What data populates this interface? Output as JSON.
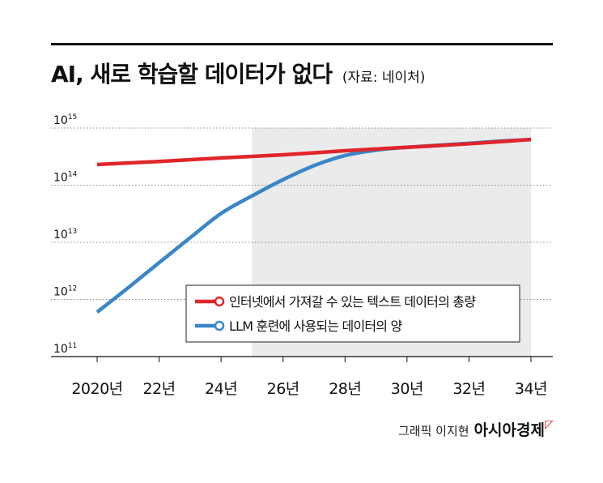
{
  "header": {
    "title": "AI, 새로 학습할 데이터가 없다",
    "source": "(자료: 네이처)"
  },
  "credit": {
    "graphic_by": "그래픽 이지현",
    "outlet": "아시아경제"
  },
  "colors": {
    "series_red": "#e0252b",
    "series_blue": "#3a86c8",
    "shade": "#ebebeb",
    "grid": "#888888"
  },
  "chart_data": {
    "type": "line",
    "x_scale": "linear",
    "y_scale": "log",
    "xlim": [
      2020,
      2034
    ],
    "ylim": [
      100000000000.0,
      1000000000000000.0
    ],
    "x_ticks": [
      2020,
      2022,
      2024,
      2026,
      2028,
      2030,
      2032,
      2034
    ],
    "x_tick_labels": [
      "2020년",
      "22년",
      "24년",
      "26년",
      "28년",
      "30년",
      "32년",
      "34년"
    ],
    "y_ticks": [
      {
        "value": 1000000000000000.0,
        "base": "10",
        "exp": "15"
      },
      {
        "value": 100000000000000.0,
        "base": "10",
        "exp": "14"
      },
      {
        "value": 10000000000000.0,
        "base": "10",
        "exp": "13"
      },
      {
        "value": 1000000000000.0,
        "base": "10",
        "exp": "12"
      },
      {
        "value": 100000000000.0,
        "base": "10",
        "exp": "11"
      }
    ],
    "grid": "horizontal dotted",
    "shaded_region": [
      2025,
      2034
    ],
    "legend_position": "center-right",
    "series": [
      {
        "name": "인터넷에서 가져갈 수 있는 텍스트 데이터의 총량",
        "color": "#e0252b",
        "x": [
          2020,
          2022,
          2024,
          2026,
          2028,
          2030,
          2032,
          2034
        ],
        "y": [
          230000000000000.0,
          260000000000000.0,
          300000000000000.0,
          340000000000000.0,
          400000000000000.0,
          460000000000000.0,
          530000000000000.0,
          630000000000000.0
        ]
      },
      {
        "name": "LLM 훈련에 사용되는 데이터의 양",
        "color": "#3a86c8",
        "x": [
          2020,
          2021,
          2022,
          2023,
          2024,
          2025,
          2026,
          2027,
          2028,
          2029,
          2030,
          2031,
          2032,
          2033,
          2034
        ],
        "y": [
          600000000000.0,
          1600000000000.0,
          4400000000000.0,
          12000000000000.0,
          32000000000000.0,
          65000000000000.0,
          125000000000000.0,
          220000000000000.0,
          330000000000000.0,
          410000000000000.0,
          460000000000000.0,
          500000000000000.0,
          540000000000000.0,
          590000000000000.0,
          630000000000000.0
        ]
      }
    ]
  }
}
